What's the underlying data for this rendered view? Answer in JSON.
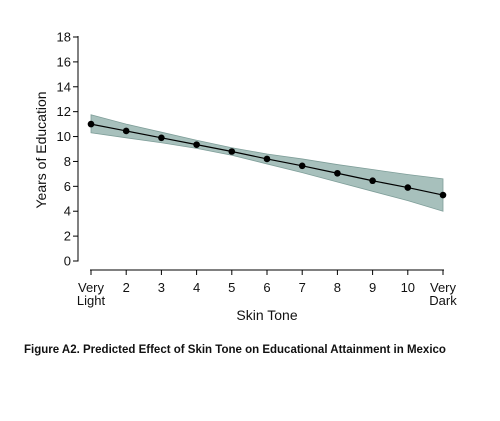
{
  "figure_caption": "Figure A2. Predicted Effect of Skin Tone on Educational Attainment in Mexico",
  "chart_data": {
    "type": "line",
    "title": "",
    "xlabel": "Skin Tone",
    "ylabel": "Years of Education",
    "x": [
      1,
      2,
      3,
      4,
      5,
      6,
      7,
      8,
      9,
      10,
      11
    ],
    "x_tick_labels": [
      "Very Light",
      "2",
      "3",
      "4",
      "5",
      "6",
      "7",
      "8",
      "9",
      "10",
      "Very Dark"
    ],
    "y_ticks": [
      0,
      2,
      4,
      6,
      8,
      10,
      12,
      14,
      16,
      18
    ],
    "xlim": [
      1,
      11
    ],
    "ylim": [
      0,
      18
    ],
    "series": [
      {
        "values": [
          11.0,
          10.45,
          9.9,
          9.35,
          8.8,
          8.2,
          7.65,
          7.05,
          6.45,
          5.9,
          5.3
        ],
        "ci_lower": [
          10.3,
          9.9,
          9.5,
          9.05,
          8.5,
          7.8,
          7.1,
          6.35,
          5.6,
          4.85,
          4.0
        ],
        "ci_upper": [
          11.75,
          11.0,
          10.35,
          9.7,
          9.1,
          8.6,
          8.2,
          7.75,
          7.35,
          6.95,
          6.6
        ]
      }
    ],
    "colors": {
      "ci_band": "#a7c0bc",
      "ci_edge": "#7f9e99",
      "line": "#000000",
      "marker": "#000000"
    },
    "grid": false,
    "legend": "none"
  }
}
